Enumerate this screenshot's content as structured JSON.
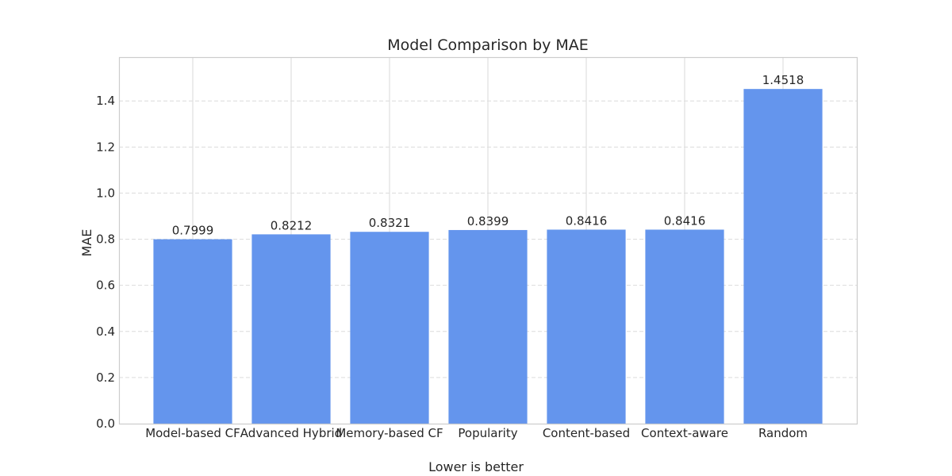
{
  "chart_data": {
    "type": "bar",
    "title": "Model Comparison by MAE",
    "xlabel": "Lower is better",
    "ylabel": "MAE",
    "categories": [
      "Model-based CF",
      "Advanced Hybrid",
      "Memory-based CF",
      "Popularity",
      "Content-based",
      "Context-aware",
      "Random"
    ],
    "values": [
      0.7999,
      0.8212,
      0.8321,
      0.8399,
      0.8416,
      0.8416,
      1.4518
    ],
    "value_labels": [
      "0.7999",
      "0.8212",
      "0.8321",
      "0.8399",
      "0.8416",
      "0.8416",
      "1.4518"
    ],
    "ylim": [
      0,
      1.59
    ],
    "yticks": [
      0.0,
      0.2,
      0.4,
      0.6,
      0.8,
      1.0,
      1.2,
      1.4
    ],
    "ytick_labels": [
      "0.0",
      "0.2",
      "0.4",
      "0.6",
      "0.8",
      "1.0",
      "1.2",
      "1.4"
    ],
    "grid": true,
    "bar_color": "#6495ed"
  }
}
